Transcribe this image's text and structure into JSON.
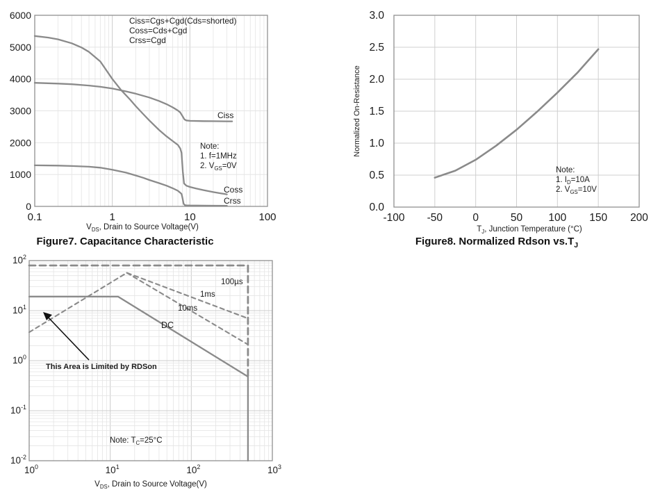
{
  "page": {
    "background": "#ffffff"
  },
  "colors": {
    "curve": "#8a8a8a",
    "grid_minor": "#e4e4e4",
    "grid_major": "#cccccc",
    "plot_border": "#909090",
    "text": "#1b1b1b",
    "arrow": "#111111"
  },
  "chart_data": [
    {
      "id": "fig7",
      "type": "line",
      "x_scale": "log",
      "y_scale": "linear",
      "xlim": [
        0.1,
        100
      ],
      "ylim": [
        0,
        6000
      ],
      "x_ticks": [
        "0.1",
        "1",
        "10",
        "100"
      ],
      "y_ticks": [
        "0",
        "1000",
        "2000",
        "3000",
        "4000",
        "5000",
        "6000"
      ],
      "xlabel": "V~DS~, Drain to Source Voltage(V)",
      "ylabel": "",
      "caption": "Figure7. Capacitance Characteristic",
      "equations": [
        "Ciss=Cgs+Cgd(Cds=shorted)",
        "Coss=Cds+Cgd",
        "Crss=Cgd"
      ],
      "note_lines": [
        "Note:",
        "1. f=1MHz",
        "2. V~GS~=0V"
      ],
      "grid": "on",
      "series": [
        {
          "name": "Ciss",
          "points": [
            [
              0.1,
              3880
            ],
            [
              0.2,
              3855
            ],
            [
              0.3,
              3835
            ],
            [
              0.5,
              3795
            ],
            [
              0.7,
              3755
            ],
            [
              1,
              3700
            ],
            [
              1.5,
              3610
            ],
            [
              2,
              3540
            ],
            [
              3,
              3420
            ],
            [
              4,
              3310
            ],
            [
              5,
              3210
            ],
            [
              6,
              3110
            ],
            [
              7,
              3010
            ],
            [
              7.5,
              2950
            ],
            [
              8,
              2840
            ],
            [
              8.5,
              2730
            ],
            [
              9,
              2700
            ],
            [
              10,
              2685
            ],
            [
              15,
              2678
            ],
            [
              20,
              2674
            ],
            [
              30,
              2670
            ],
            [
              35,
              2670
            ]
          ]
        },
        {
          "name": "Coss",
          "points": [
            [
              0.1,
              5350
            ],
            [
              0.15,
              5300
            ],
            [
              0.2,
              5245
            ],
            [
              0.3,
              5120
            ],
            [
              0.4,
              4990
            ],
            [
              0.5,
              4850
            ],
            [
              0.7,
              4550
            ],
            [
              1,
              4000
            ],
            [
              1.3,
              3650
            ],
            [
              1.7,
              3350
            ],
            [
              2,
              3150
            ],
            [
              2.5,
              2900
            ],
            [
              3,
              2700
            ],
            [
              4,
              2400
            ],
            [
              5,
              2200
            ],
            [
              6,
              2050
            ],
            [
              7,
              1930
            ],
            [
              7.5,
              1820
            ],
            [
              7.8,
              1680
            ],
            [
              8.1,
              1100
            ],
            [
              8.4,
              720
            ],
            [
              9,
              650
            ],
            [
              10,
              610
            ],
            [
              12,
              560
            ],
            [
              15,
              510
            ],
            [
              20,
              450
            ],
            [
              25,
              410
            ],
            [
              30,
              380
            ]
          ]
        },
        {
          "name": "Crss",
          "points": [
            [
              0.1,
              1290
            ],
            [
              0.2,
              1280
            ],
            [
              0.3,
              1268
            ],
            [
              0.5,
              1245
            ],
            [
              0.7,
              1215
            ],
            [
              1,
              1150
            ],
            [
              1.5,
              1060
            ],
            [
              2,
              970
            ],
            [
              2.5,
              900
            ],
            [
              3,
              830
            ],
            [
              4,
              730
            ],
            [
              5,
              650
            ],
            [
              6,
              570
            ],
            [
              7,
              490
            ],
            [
              7.5,
              430
            ],
            [
              7.8,
              390
            ],
            [
              8,
              280
            ],
            [
              8.3,
              80
            ],
            [
              8.6,
              40
            ],
            [
              9,
              32
            ],
            [
              10,
              28
            ],
            [
              15,
              25
            ],
            [
              20,
              22
            ],
            [
              30,
              20
            ]
          ]
        }
      ]
    },
    {
      "id": "fig8",
      "type": "line",
      "x_scale": "linear",
      "y_scale": "linear",
      "xlim": [
        -100,
        200
      ],
      "ylim": [
        0,
        3
      ],
      "x_ticks": [
        "-100",
        "-50",
        "0",
        "50",
        "100",
        "150",
        "200"
      ],
      "y_ticks": [
        "0.0",
        "0.5",
        "1.0",
        "1.5",
        "2.0",
        "2.5",
        "3.0"
      ],
      "xlabel": "T~J~, Junction Temperature (°C)",
      "ylabel": "Normalized On-Resistance",
      "caption": "Figure8. Normalized Rdson vs.T~J~",
      "note_lines": [
        "Note:",
        "1. I~D~=10A",
        "2. V~GS~=10V"
      ],
      "grid": "on",
      "series": [
        {
          "name": "normalized-rdson",
          "points": [
            [
              -50,
              0.46
            ],
            [
              -25,
              0.57
            ],
            [
              0,
              0.74
            ],
            [
              25,
              0.96
            ],
            [
              50,
              1.21
            ],
            [
              75,
              1.49
            ],
            [
              100,
              1.79
            ],
            [
              125,
              2.11
            ],
            [
              150,
              2.47
            ]
          ]
        }
      ]
    },
    {
      "id": "soa",
      "type": "line",
      "x_scale": "log",
      "y_scale": "log",
      "xlim": [
        1,
        1000
      ],
      "ylim": [
        0.01,
        100
      ],
      "x_tick_exponents": [
        0,
        1,
        2,
        3
      ],
      "y_tick_exponents": [
        2,
        1,
        0,
        -1,
        -2
      ],
      "xlabel": "V~DS~, Drain to Source Voltage(V)",
      "ylabel": "",
      "caption": "",
      "note": "Note: T~C~=25°C",
      "annotation": "This Area is Limited by RDSon",
      "grid": "on",
      "series": [
        {
          "name": "100us",
          "label": "100µs",
          "style": "dashed",
          "points": [
            [
              1,
              80
            ],
            [
              500,
              80
            ],
            [
              500,
              0.5
            ]
          ]
        },
        {
          "name": "1ms",
          "label": "1ms",
          "style": "dashed",
          "points": [
            [
              1,
              3.7
            ],
            [
              16,
              57
            ],
            [
              500,
              7
            ]
          ]
        },
        {
          "name": "10ms",
          "label": "10ms",
          "style": "dashed",
          "points": [
            [
              16,
              57
            ],
            [
              500,
              2.1
            ]
          ]
        },
        {
          "name": "DC",
          "label": "DC",
          "style": "solid",
          "points": [
            [
              1,
              19
            ],
            [
              12.5,
              19
            ],
            [
              500,
              0.48
            ],
            [
              500,
              0.01
            ]
          ]
        }
      ]
    }
  ]
}
